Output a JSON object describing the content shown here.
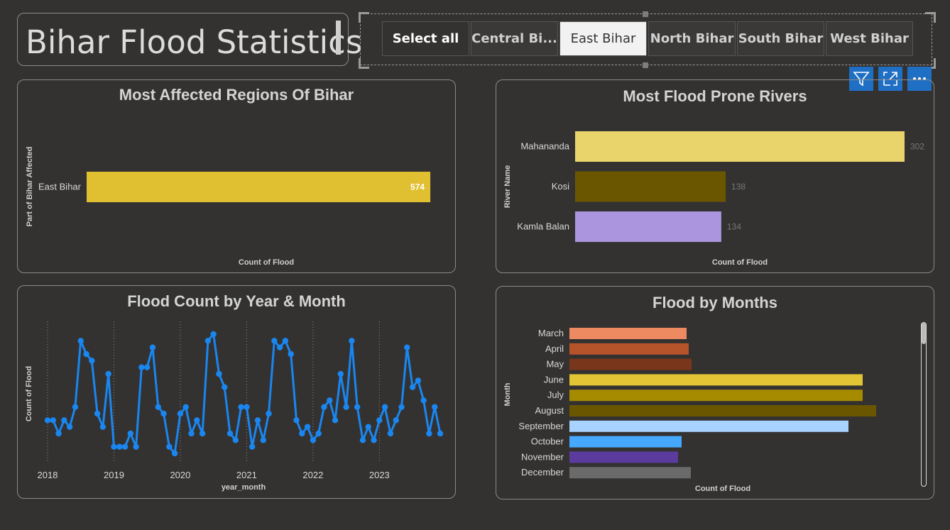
{
  "header": {
    "title": "Bihar Flood Statistics"
  },
  "slicer": {
    "buttons": [
      {
        "label": "Select all"
      },
      {
        "label": "Central Bi..."
      },
      {
        "label": "East Bihar"
      },
      {
        "label": "North Bihar"
      },
      {
        "label": "South Bihar"
      },
      {
        "label": "West Bihar"
      }
    ],
    "selected": "East Bihar"
  },
  "toolbar": {
    "icons": [
      "filter-icon",
      "focus-mode-icon",
      "more-options-icon"
    ],
    "accent": "#1f6fc4"
  },
  "chart_data": [
    {
      "id": "regions",
      "type": "bar",
      "title": "Most Affected Regions Of Bihar",
      "xlabel": "Count of Flood",
      "ylabel": "Part of Bihar Affected",
      "categories": [
        "East Bihar"
      ],
      "values": [
        574
      ],
      "colors": [
        "#e0c030"
      ],
      "xlim": [
        0,
        600
      ]
    },
    {
      "id": "rivers",
      "type": "bar",
      "title": "Most Flood Prone Rivers",
      "xlabel": "Count of Flood",
      "ylabel": "River Name",
      "categories": [
        "Mahananda",
        "Kosi",
        "Kamla Balan"
      ],
      "values": [
        302,
        138,
        134
      ],
      "colors": [
        "#e9d46c",
        "#6b5600",
        "#ab95de"
      ],
      "xlim": [
        0,
        302
      ]
    },
    {
      "id": "timeline",
      "type": "line",
      "title": "Flood Count by Year & Month",
      "xlabel": "year_month",
      "ylabel": "Count of Flood",
      "x_ticks": [
        "2018",
        "2019",
        "2020",
        "2021",
        "2022",
        "2023"
      ],
      "values": [
        2,
        2,
        1,
        2,
        1.5,
        3,
        8,
        7,
        6.5,
        2.5,
        1.5,
        5.5,
        0,
        0,
        0,
        1,
        0,
        6,
        6,
        7.5,
        3,
        2.5,
        0,
        -0.5,
        2.5,
        3,
        1,
        2,
        1,
        8,
        8.5,
        5.5,
        4.5,
        1,
        0.5,
        3,
        3,
        0,
        2,
        0.5,
        2.5,
        8,
        7.5,
        8,
        7,
        2,
        1,
        1.5,
        0.5,
        1,
        3,
        3.5,
        2,
        5.5,
        3,
        8,
        3,
        0.5,
        1.5,
        0.5,
        2,
        3,
        1,
        2,
        3,
        7.5,
        4.5,
        5,
        3.5,
        1,
        3,
        1
      ],
      "ylim": [
        -0.5,
        8.5
      ],
      "color": "#1a86f0"
    },
    {
      "id": "months",
      "type": "bar",
      "title": "Flood by Months",
      "xlabel": "Count of Flood",
      "ylabel": "Month",
      "categories": [
        "March",
        "April",
        "May",
        "June",
        "July",
        "August",
        "September",
        "October",
        "November",
        "December"
      ],
      "values": [
        165,
        168,
        172,
        413,
        413,
        432,
        393,
        158,
        153,
        171
      ],
      "colors": [
        "#ee8a62",
        "#b5532a",
        "#7a361b",
        "#e3c434",
        "#a68a00",
        "#6b5600",
        "#a9d3ff",
        "#46a8ff",
        "#5b3c9e",
        "#6a6a6a"
      ],
      "xlim": [
        0,
        432
      ]
    }
  ]
}
